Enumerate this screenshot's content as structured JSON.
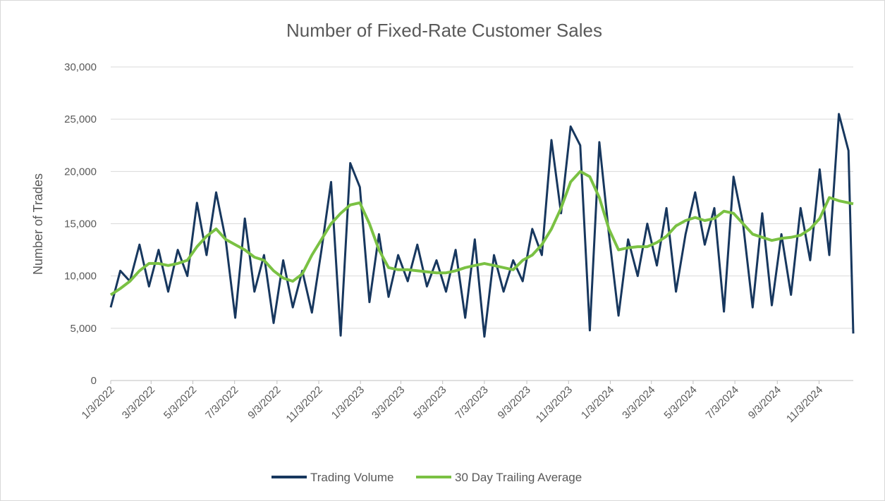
{
  "chart_data": {
    "type": "line",
    "title": "Number of Fixed-Rate Customer Sales",
    "y_label": "Number of Trades",
    "x": [
      "1/3/2022",
      "1/17/2022",
      "1/31/2022",
      "2/14/2022",
      "2/28/2022",
      "3/14/2022",
      "3/28/2022",
      "4/11/2022",
      "4/25/2022",
      "5/9/2022",
      "5/23/2022",
      "6/6/2022",
      "6/20/2022",
      "7/4/2022",
      "7/18/2022",
      "8/1/2022",
      "8/15/2022",
      "8/29/2022",
      "9/12/2022",
      "9/26/2022",
      "10/10/2022",
      "10/24/2022",
      "11/7/2022",
      "11/21/2022",
      "12/5/2022",
      "12/19/2022",
      "1/2/2023",
      "1/16/2023",
      "1/30/2023",
      "2/13/2023",
      "2/27/2023",
      "3/13/2023",
      "3/27/2023",
      "4/10/2023",
      "4/24/2023",
      "5/8/2023",
      "5/22/2023",
      "6/5/2023",
      "6/19/2023",
      "7/3/2023",
      "7/17/2023",
      "7/31/2023",
      "8/14/2023",
      "8/28/2023",
      "9/11/2023",
      "9/25/2023",
      "10/9/2023",
      "10/23/2023",
      "11/6/2023",
      "11/20/2023",
      "12/4/2023",
      "12/18/2023",
      "1/1/2024",
      "1/15/2024",
      "1/29/2024",
      "2/12/2024",
      "2/26/2024",
      "3/11/2024",
      "3/25/2024",
      "4/8/2024",
      "4/22/2024",
      "5/6/2024",
      "5/20/2024",
      "6/3/2024",
      "6/17/2024",
      "7/1/2024",
      "7/15/2024",
      "7/29/2024",
      "8/12/2024",
      "8/26/2024",
      "9/9/2024",
      "9/23/2024",
      "10/7/2024",
      "10/21/2024",
      "11/4/2024",
      "11/18/2024",
      "12/2/2024",
      "12/16/2024",
      "12/23/2024"
    ],
    "series": [
      {
        "name": "Trading Volume",
        "color": "#17375e",
        "values": [
          7000,
          10500,
          9500,
          13000,
          9000,
          12500,
          8500,
          12500,
          10000,
          17000,
          12000,
          18000,
          13500,
          6000,
          15500,
          8500,
          12000,
          5500,
          11500,
          7000,
          10500,
          6500,
          12500,
          19000,
          4300,
          20800,
          18500,
          7500,
          14000,
          8000,
          12000,
          9500,
          13000,
          9000,
          11500,
          8500,
          12500,
          6000,
          13500,
          4200,
          12000,
          8500,
          11500,
          9500,
          14500,
          12000,
          23000,
          16000,
          24300,
          22500,
          4800,
          22800,
          14000,
          6200,
          13500,
          10000,
          15000,
          11000,
          16500,
          8500,
          14000,
          18000,
          13000,
          16500,
          6600,
          19500,
          15000,
          7000,
          16000,
          7200,
          14000,
          8200,
          16500,
          11500,
          20200,
          12000,
          25500,
          22000,
          4500
        ]
      },
      {
        "name": "30 Day Trailing Average",
        "color": "#7ac143",
        "values": [
          8200,
          8800,
          9500,
          10500,
          11200,
          11200,
          11000,
          11200,
          11500,
          12800,
          13800,
          14500,
          13500,
          13000,
          12500,
          11800,
          11500,
          10500,
          9800,
          9500,
          10200,
          12000,
          13500,
          15000,
          16000,
          16800,
          17000,
          15000,
          12500,
          10800,
          10600,
          10600,
          10500,
          10400,
          10300,
          10300,
          10500,
          10800,
          11000,
          11200,
          11000,
          10800,
          10600,
          11500,
          12000,
          13000,
          14500,
          16500,
          19000,
          20000,
          19500,
          17500,
          14500,
          12500,
          12700,
          12800,
          12800,
          13200,
          13800,
          14800,
          15300,
          15600,
          15300,
          15500,
          16200,
          16000,
          15000,
          14000,
          13700,
          13400,
          13600,
          13700,
          13900,
          14500,
          15500,
          17500,
          17200,
          17000,
          16900
        ]
      }
    ],
    "xlim": [
      "1/3/2022",
      "12/23/2024"
    ],
    "xticks": [
      "1/3/2022",
      "3/3/2022",
      "5/3/2022",
      "7/3/2022",
      "9/3/2022",
      "11/3/2022",
      "1/3/2023",
      "3/3/2023",
      "5/3/2023",
      "7/3/2023",
      "9/3/2023",
      "11/3/2023",
      "1/3/2024",
      "3/3/2024",
      "5/3/2024",
      "7/3/2024",
      "9/3/2024",
      "11/3/2024"
    ],
    "ylim": [
      0,
      30000
    ],
    "yticks": [
      0,
      {
        "value": 5000,
        "label": "5,000"
      },
      {
        "value": 10000,
        "label": "10,000"
      },
      {
        "value": 15000,
        "label": "15,000"
      },
      {
        "value": 20000,
        "label": "20,000"
      },
      {
        "value": 25000,
        "label": "25,000"
      },
      {
        "value": 30000,
        "label": "30,000"
      }
    ],
    "grid": true,
    "legend": "bottom"
  }
}
